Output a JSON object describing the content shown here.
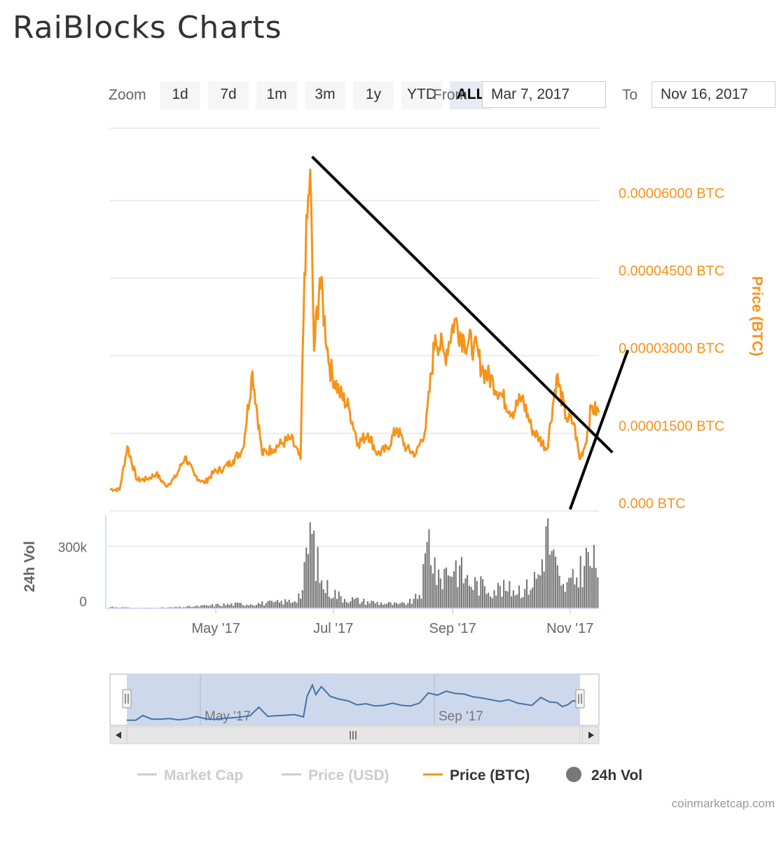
{
  "page": {
    "title": "RaiBlocks Charts",
    "credit": "coinmarketcap.com"
  },
  "zoom": {
    "label": "Zoom",
    "buttons": [
      "1d",
      "7d",
      "1m",
      "3m",
      "1y",
      "YTD",
      "ALL"
    ],
    "active": "ALL"
  },
  "range": {
    "from_label": "From",
    "from_value": "Mar 7, 2017",
    "to_label": "To",
    "to_value": "Nov 16, 2017"
  },
  "legend": [
    {
      "name": "Market Cap",
      "active": false,
      "marker": "line",
      "color": "#cccccc"
    },
    {
      "name": "Price (USD)",
      "active": false,
      "marker": "line",
      "color": "#cccccc"
    },
    {
      "name": "Price (BTC)",
      "active": true,
      "marker": "line",
      "color": "#f7931a"
    },
    {
      "name": "24h Vol",
      "active": true,
      "marker": "circle",
      "color": "#777777"
    }
  ],
  "colors": {
    "price_btc": "#f7931a",
    "volume": "#777777",
    "navigator_line": "#4572a7",
    "navigator_fill": "#c9d4ea",
    "trendline": "#000000"
  },
  "chart_data": [
    {
      "type": "line",
      "title": "",
      "series": [
        {
          "name": "Price (BTC)",
          "x": [
            "2017-03-07",
            "2017-03-12",
            "2017-03-16",
            "2017-03-21",
            "2017-03-26",
            "2017-03-31",
            "2017-04-05",
            "2017-04-10",
            "2017-04-15",
            "2017-04-20",
            "2017-04-25",
            "2017-04-30",
            "2017-05-05",
            "2017-05-10",
            "2017-05-15",
            "2017-05-20",
            "2017-05-25",
            "2017-05-30",
            "2017-06-04",
            "2017-06-09",
            "2017-06-14",
            "2017-06-16",
            "2017-06-19",
            "2017-06-21",
            "2017-06-24",
            "2017-06-29",
            "2017-07-04",
            "2017-07-09",
            "2017-07-14",
            "2017-07-19",
            "2017-07-24",
            "2017-07-29",
            "2017-08-03",
            "2017-08-08",
            "2017-08-13",
            "2017-08-18",
            "2017-08-23",
            "2017-08-28",
            "2017-09-02",
            "2017-09-07",
            "2017-09-12",
            "2017-09-17",
            "2017-09-22",
            "2017-09-27",
            "2017-10-02",
            "2017-10-07",
            "2017-10-12",
            "2017-10-16",
            "2017-10-20",
            "2017-10-25",
            "2017-10-30",
            "2017-11-03",
            "2017-11-06",
            "2017-11-09",
            "2017-11-12",
            "2017-11-16"
          ],
          "values": [
            4.2e-06,
            4.1e-06,
            1.25e-05,
            6e-06,
            6.1e-06,
            7.2e-06,
            4.8e-06,
            6.5e-06,
            1.05e-05,
            6.8e-06,
            5.4e-06,
            7.5e-06,
            8.2e-06,
            9.8e-06,
            1.2e-05,
            2.7e-05,
            1.1e-05,
            1.2e-05,
            1.3e-05,
            1.4e-05,
            1e-05,
            4.6e-05,
            6.6e-05,
            3.1e-05,
            4.5e-05,
            2.8e-05,
            2.3e-05,
            2e-05,
            1.3e-05,
            1.5e-05,
            1.1e-05,
            1.2e-05,
            1.6e-05,
            1.2e-05,
            1.1e-05,
            1.6e-05,
            3.4e-05,
            3e-05,
            3.7e-05,
            3.3e-05,
            3.2e-05,
            2.7e-05,
            2.5e-05,
            2.2e-05,
            1.9e-05,
            2.2e-05,
            1.6e-05,
            1.4e-05,
            1.2e-05,
            2.6e-05,
            1.8e-05,
            1.7e-05,
            1e-05,
            1.3e-05,
            2e-05,
            1.9e-05
          ],
          "yaxis": {
            "label": "Price (BTC)",
            "ticks": [
              "0.000 BTC",
              "0.00001500 BTC",
              "0.00003000 BTC",
              "0.00004500 BTC",
              "0.00006000 BTC"
            ],
            "ylim": [
              0,
              7.4e-05
            ]
          }
        },
        {
          "name": "24h Vol",
          "type": "bar",
          "x": [
            "2017-03-07",
            "2017-03-20",
            "2017-04-05",
            "2017-04-20",
            "2017-05-05",
            "2017-05-20",
            "2017-06-01",
            "2017-06-10",
            "2017-06-15",
            "2017-06-19",
            "2017-06-25",
            "2017-07-05",
            "2017-07-15",
            "2017-07-25",
            "2017-08-05",
            "2017-08-12",
            "2017-08-16",
            "2017-08-20",
            "2017-08-25",
            "2017-08-28",
            "2017-09-03",
            "2017-09-10",
            "2017-09-20",
            "2017-10-01",
            "2017-10-10",
            "2017-10-17",
            "2017-10-20",
            "2017-10-28",
            "2017-11-04",
            "2017-11-10",
            "2017-11-16"
          ],
          "values": [
            8000,
            2000,
            4000,
            10000,
            20000,
            25000,
            30000,
            40000,
            90000,
            420000,
            130000,
            60000,
            40000,
            30000,
            20000,
            40000,
            90000,
            380000,
            140000,
            200000,
            230000,
            140000,
            110000,
            100000,
            110000,
            190000,
            420000,
            100000,
            150000,
            260000,
            220000
          ],
          "yaxis": {
            "label": "24h Vol",
            "ticks": [
              "0",
              "300k"
            ],
            "ylim": [
              0,
              450000
            ]
          }
        }
      ],
      "xaxis": {
        "ticks": [
          "May '17",
          "Jul '17",
          "Sep '17",
          "Nov '17"
        ],
        "range": [
          "2017-03-07",
          "2017-11-16"
        ]
      },
      "navigator": {
        "ticks": [
          "May '17",
          "Sep '17"
        ]
      },
      "annotations": [
        {
          "type": "line",
          "from": [
            "2017-06-20",
            6.85e-05
          ],
          "to": [
            "2017-11-23",
            1.13e-05
          ]
        },
        {
          "type": "line",
          "from": [
            "2017-11-01",
            3e-07
          ],
          "to": [
            "2017-12-01",
            3.11e-05
          ]
        }
      ],
      "grid": true,
      "legend_position": "bottom"
    }
  ]
}
